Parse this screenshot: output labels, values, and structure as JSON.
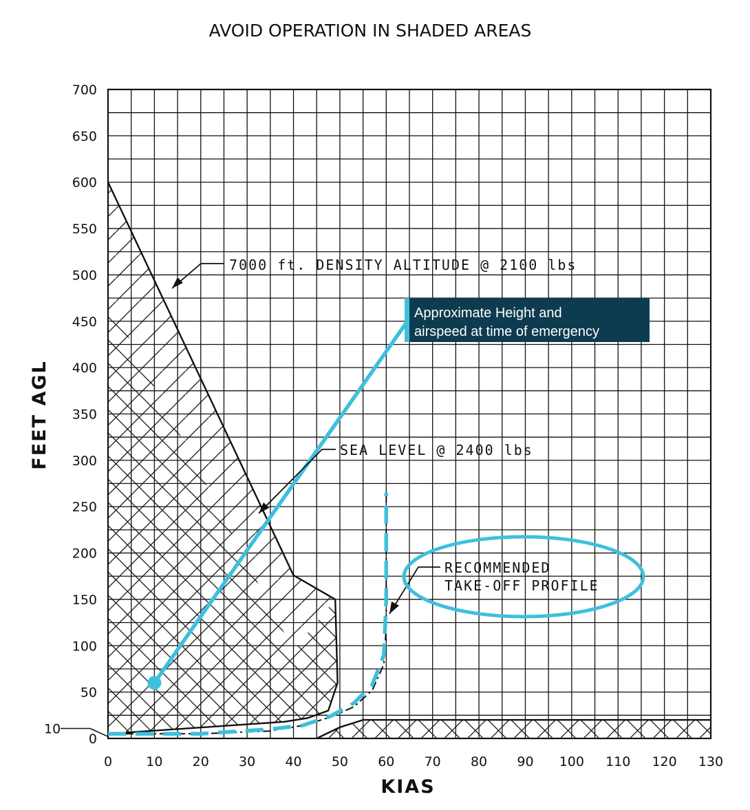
{
  "chart_data": {
    "type": "line",
    "title": "AVOID OPERATION IN SHADED AREAS",
    "xlabel": "KIAS",
    "ylabel": "FEET AGL",
    "xlim": [
      0,
      130
    ],
    "ylim": [
      0,
      700
    ],
    "x_ticks": [
      0,
      10,
      20,
      30,
      40,
      50,
      60,
      70,
      80,
      90,
      100,
      110,
      120,
      130
    ],
    "y_ticks": [
      0,
      50,
      100,
      150,
      200,
      250,
      300,
      350,
      400,
      450,
      500,
      550,
      600,
      650,
      700
    ],
    "extra_y_tick": "10",
    "grid": true,
    "shaded_regions": [
      {
        "name": "7000 ft. DENSITY ALTITUDE @ 2100 lbs",
        "boundary": [
          [
            0,
            600
          ],
          [
            10,
            494
          ],
          [
            20,
            388
          ],
          [
            30,
            282
          ],
          [
            40,
            176
          ],
          [
            49,
            150
          ],
          [
            49.5,
            60
          ],
          [
            47.5,
            30
          ],
          [
            43,
            22
          ],
          [
            38,
            18
          ],
          [
            0,
            5
          ]
        ],
        "points_upper": [
          [
            0,
            600
          ],
          [
            49,
            150
          ]
        ]
      },
      {
        "name": "SEA LEVEL @ 2400 lbs",
        "boundary": [
          [
            0,
            475
          ],
          [
            10,
            380
          ],
          [
            20,
            285
          ],
          [
            30,
            190
          ],
          [
            40,
            95
          ],
          [
            49,
            150
          ],
          [
            49.5,
            60
          ],
          [
            47.5,
            30
          ],
          [
            43,
            22
          ],
          [
            38,
            18
          ],
          [
            0,
            5
          ]
        ]
      },
      {
        "name": "high-speed low-altitude band",
        "boundary": [
          [
            45,
            0
          ],
          [
            50,
            12
          ],
          [
            55,
            20
          ],
          [
            130,
            20
          ],
          [
            130,
            0
          ]
        ]
      }
    ],
    "recommended_profile": [
      [
        0,
        5
      ],
      [
        20,
        5
      ],
      [
        35,
        10
      ],
      [
        42,
        14
      ],
      [
        48,
        24
      ],
      [
        53,
        38
      ],
      [
        57,
        58
      ],
      [
        59.5,
        90
      ],
      [
        60,
        150
      ],
      [
        60,
        265
      ]
    ],
    "emergency_profile": [
      [
        0,
        5
      ],
      [
        20,
        5
      ],
      [
        35,
        8
      ],
      [
        42,
        14
      ],
      [
        48,
        23
      ],
      [
        53,
        34
      ],
      [
        57,
        52
      ],
      [
        59.5,
        80
      ],
      [
        60,
        120
      ],
      [
        60,
        265
      ]
    ],
    "emergency_point": {
      "x": 10,
      "y": 60
    },
    "annotations": {
      "density_altitude": "7000 ft. DENSITY ALTITUDE @ 2100 lbs",
      "sea_level": "SEA LEVEL @ 2400 lbs",
      "recommended_line1": "RECOMMENDED",
      "recommended_line2": "TAKE-OFF PROFILE",
      "callout_line1": "Approximate Height and",
      "callout_line2": "airspeed at time of emergency"
    },
    "colors": {
      "grid": "#111111",
      "highlight": "#3ec0dc",
      "callout_bg": "#0d3b4f",
      "callout_text": "#ffffff"
    }
  }
}
